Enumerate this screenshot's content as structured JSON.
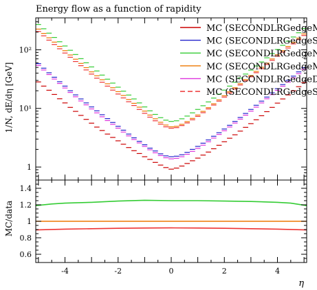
{
  "chart_data": [
    {
      "type": "line",
      "title": "Energy flow as a function of rapidity",
      "ylabel": "1/N, dE/dη [GeV]",
      "xlabel": "",
      "yscale": "log",
      "ylim": [
        0.6,
        350
      ],
      "xlim": [
        -5.1,
        5.1
      ],
      "grid": false,
      "legend_position": "top-right",
      "y_ticks": [
        {
          "value": 1,
          "label": "1"
        },
        {
          "value": 10,
          "label": "10¹"
        },
        {
          "value": 100,
          "label": "10²"
        }
      ],
      "x": [
        -5.0,
        -4.8,
        -4.6,
        -4.4,
        -4.2,
        -4.0,
        -3.8,
        -3.6,
        -3.4,
        -3.2,
        -3.0,
        -2.8,
        -2.6,
        -2.4,
        -2.2,
        -2.0,
        -1.8,
        -1.6,
        -1.4,
        -1.2,
        -1.0,
        -0.8,
        -0.6,
        -0.4,
        -0.2,
        0.0,
        0.2,
        0.4,
        0.6,
        0.8,
        1.0,
        1.2,
        1.4,
        1.6,
        1.8,
        2.0,
        2.2,
        2.4,
        2.6,
        2.8,
        3.0,
        3.2,
        3.4,
        3.6,
        3.8,
        4.0,
        4.2,
        4.4,
        4.6,
        4.8,
        5.0
      ],
      "series": [
        {
          "name": "MC (SECONDLRGedgeM",
          "color": "#cc0000",
          "line_style": "solid",
          "values": [
            28.3,
            24.0,
            20.4,
            17.3,
            14.6,
            12.4,
            10.4,
            8.9,
            7.6,
            6.5,
            5.6,
            4.8,
            4.2,
            3.65,
            3.2,
            2.8,
            2.45,
            2.15,
            1.9,
            1.7,
            1.5,
            1.35,
            1.2,
            1.08,
            0.98,
            0.92,
            0.96,
            1.04,
            1.15,
            1.28,
            1.42,
            1.6,
            1.8,
            2.05,
            2.35,
            2.7,
            3.1,
            3.55,
            4.1,
            4.75,
            5.5,
            6.4,
            7.5,
            8.8,
            10.4,
            12.3,
            14.5,
            17.0,
            20.0,
            23.5,
            27.5
          ]
        },
        {
          "name": "MC (SECONDLRGedgeSin",
          "color": "#2222cc",
          "line_style": "solid",
          "values": [
            58.0,
            48.5,
            40.5,
            34.0,
            28.5,
            24.0,
            20.0,
            17.0,
            14.5,
            12.4,
            10.6,
            9.1,
            7.8,
            6.7,
            5.75,
            4.95,
            4.25,
            3.65,
            3.15,
            2.75,
            2.4,
            2.1,
            1.88,
            1.68,
            1.55,
            1.5,
            1.53,
            1.62,
            1.78,
            2.0,
            2.25,
            2.55,
            2.9,
            3.35,
            3.85,
            4.45,
            5.15,
            6.0,
            7.0,
            8.2,
            9.6,
            11.3,
            13.3,
            15.6,
            18.4,
            21.7,
            25.5,
            30.0,
            35.5,
            42.0,
            49.5
          ]
        },
        {
          "name": "MC (SECONDLRGedgeN",
          "color": "#33cc33",
          "line_style": "solid",
          "values": [
            270,
            228,
            192,
            162,
            137,
            116,
            98.0,
            83.0,
            70.5,
            60.0,
            51.0,
            43.5,
            37.0,
            31.5,
            27.0,
            23.0,
            19.7,
            16.9,
            14.5,
            12.4,
            10.6,
            9.1,
            7.9,
            6.95,
            6.3,
            6.0,
            6.15,
            6.65,
            7.4,
            8.4,
            9.6,
            11.1,
            12.9,
            15.0,
            17.5,
            20.5,
            24.0,
            28.0,
            33.0,
            38.5,
            45.0,
            53.0,
            62.0,
            73.0,
            86.0,
            101,
            119,
            140,
            165,
            195,
            230
          ]
        },
        {
          "name": "MC (SECONDLRGedgeM",
          "color": "#ee7700",
          "line_style": "solid",
          "values": [
            225,
            190,
            160,
            135,
            114,
            96.5,
            81.5,
            69.0,
            58.5,
            49.5,
            42.0,
            36.0,
            30.8,
            26.3,
            22.5,
            19.3,
            16.6,
            14.2,
            12.2,
            10.5,
            9.0,
            7.7,
            6.65,
            5.8,
            5.2,
            4.85,
            4.95,
            5.35,
            5.95,
            6.75,
            7.7,
            8.9,
            10.3,
            12.0,
            14.0,
            16.4,
            19.2,
            22.5,
            26.4,
            31.0,
            36.4,
            42.8,
            50.3,
            59.2,
            69.7,
            82.0,
            96.5,
            114,
            134,
            158,
            186
          ]
        },
        {
          "name": "MC (SECONDLRGedgeDi",
          "color": "#dd33dd",
          "line_style": "solid",
          "values": [
            54.0,
            45.2,
            37.8,
            31.7,
            26.6,
            22.3,
            18.7,
            15.8,
            13.4,
            11.5,
            9.8,
            8.4,
            7.2,
            6.2,
            5.35,
            4.6,
            3.95,
            3.4,
            2.95,
            2.58,
            2.25,
            1.97,
            1.75,
            1.57,
            1.44,
            1.38,
            1.41,
            1.5,
            1.65,
            1.85,
            2.08,
            2.36,
            2.7,
            3.12,
            3.6,
            4.16,
            4.82,
            5.62,
            6.55,
            7.66,
            8.97,
            10.5,
            12.4,
            14.6,
            17.2,
            20.3,
            23.9,
            28.1,
            33.2,
            39.2,
            46.3
          ]
        },
        {
          "name": "MC (SECONDLRGedgeSin",
          "color": "#ee3333",
          "line_style": "dashed",
          "values": [
            205,
            173,
            146,
            123,
            104,
            88.0,
            74.5,
            63.0,
            53.5,
            45.3,
            38.5,
            32.8,
            28.0,
            24.0,
            20.5,
            17.6,
            15.1,
            13.0,
            11.2,
            9.6,
            8.25,
            7.1,
            6.15,
            5.4,
            4.85,
            4.6,
            4.7,
            5.1,
            5.65,
            6.4,
            7.3,
            8.45,
            9.8,
            11.4,
            13.3,
            15.6,
            18.3,
            21.4,
            25.1,
            29.5,
            34.6,
            40.6,
            47.7,
            56.1,
            66.0,
            77.6,
            91.3,
            107,
            126,
            149,
            175
          ]
        }
      ]
    },
    {
      "type": "line",
      "ylabel": "MC/data",
      "xlabel": "η",
      "ylim": [
        0.5,
        1.5
      ],
      "xlim": [
        -5.1,
        5.1
      ],
      "grid": false,
      "y_ticks": [
        {
          "value": 0.6,
          "label": "0.6"
        },
        {
          "value": 0.8,
          "label": "0.8"
        },
        {
          "value": 1.0,
          "label": "1"
        },
        {
          "value": 1.2,
          "label": "1.2"
        },
        {
          "value": 1.4,
          "label": "1.4"
        }
      ],
      "x_ticks": [
        {
          "value": -4,
          "label": "-4"
        },
        {
          "value": -2,
          "label": "-2"
        },
        {
          "value": 0,
          "label": "0"
        },
        {
          "value": 2,
          "label": "2"
        },
        {
          "value": 4,
          "label": "4"
        }
      ],
      "series": [
        {
          "color": "#33cc33",
          "x": [
            -5.1,
            -4.5,
            -4,
            -3,
            -2,
            -1,
            0,
            1,
            2,
            3,
            4,
            4.5,
            5.1
          ],
          "values": [
            1.19,
            1.21,
            1.22,
            1.23,
            1.245,
            1.255,
            1.25,
            1.25,
            1.245,
            1.24,
            1.23,
            1.22,
            1.19
          ]
        },
        {
          "color": "#ee7700",
          "x": [
            -5.1,
            5.1
          ],
          "values": [
            1.0,
            1.0
          ]
        },
        {
          "color": "#ee3333",
          "x": [
            -5.1,
            -4,
            -3,
            -2,
            -1,
            0,
            1,
            2,
            3,
            4,
            5.1
          ],
          "values": [
            0.895,
            0.905,
            0.91,
            0.915,
            0.918,
            0.92,
            0.918,
            0.915,
            0.91,
            0.905,
            0.895
          ]
        }
      ]
    }
  ]
}
